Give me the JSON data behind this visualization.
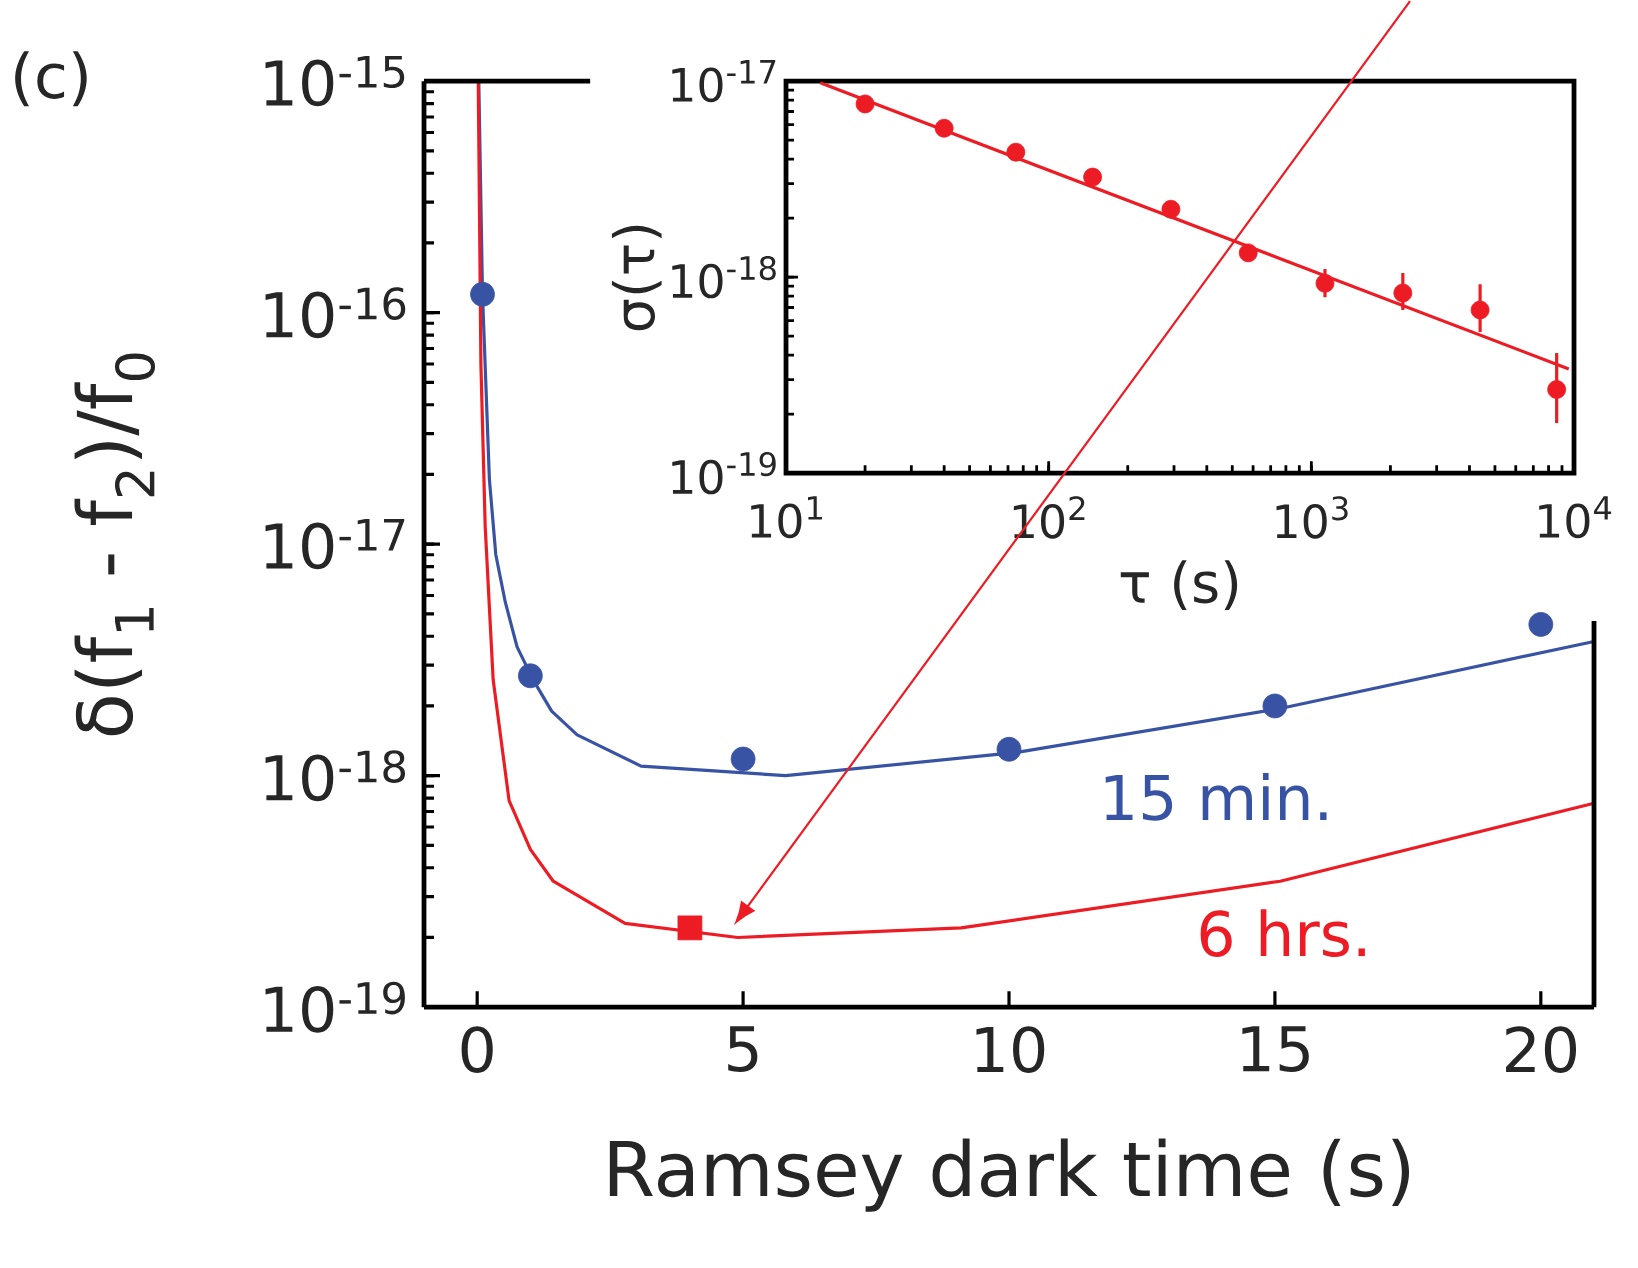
{
  "chart_data": [
    {
      "type": "line",
      "xlabel": "Ramsey dark time (s)",
      "ylabel": "δ(f$_{1}$ - f$_{2}$)/f$_{0}$",
      "annotations": [
        "(c)"
      ],
      "log": "y",
      "xlim": [
        -1,
        21
      ],
      "xticks": [
        0,
        5,
        10,
        15,
        20
      ],
      "ylim": [
        1e-19,
        1e-15
      ],
      "yticks": [
        {
          "value": 1e-19,
          "label": "10$^{-19}$"
        },
        {
          "value": 1e-18,
          "label": "10$^{-18}$"
        },
        {
          "value": 1e-17,
          "label": "10$^{-17}$"
        },
        {
          "value": 1e-16,
          "label": "10$^{-16}$"
        },
        {
          "value": 1e-15,
          "label": "10$^{-15}$"
        }
      ],
      "series": [
        {
          "name": "15 min.",
          "color": "#3953a4",
          "x": [
            0.03,
            0.1,
            0.23,
            0.35,
            0.53,
            0.75,
            1.05,
            1.4,
            1.88,
            3.08,
            5.8,
            10.15,
            15.1,
            21
          ],
          "values": [
            1e-15,
            1.2e-16,
            1.9e-17,
            9e-18,
            5.6e-18,
            3.6e-18,
            2.6e-18,
            1.9e-18,
            1.5e-18,
            1.1e-18,
            1e-18,
            1.26e-18,
            1.95e-18,
            3.8e-18
          ]
        },
        {
          "type": "scatter",
          "color": "#3953a4",
          "marker": "circle",
          "x": [
            0.1,
            1,
            5,
            10,
            15,
            20
          ],
          "values": [
            1.2e-16,
            2.7e-18,
            1.18e-18,
            1.3e-18,
            2e-18,
            4.5e-18
          ]
        },
        {
          "name": "6 hrs.",
          "color": "#ed1c24",
          "x": [
            0.02,
            0.07,
            0.15,
            0.3,
            0.6,
            1.0,
            1.43,
            2.78,
            4.9,
            9.1,
            15.1,
            21
          ],
          "values": [
            1e-15,
            6e-17,
            1.2e-17,
            2.6e-18,
            7.8e-19,
            4.8e-19,
            3.5e-19,
            2.3e-19,
            2e-19,
            2.2e-19,
            3.5e-19,
            7.6e-19
          ]
        },
        {
          "type": "scatter",
          "color": "#ed1c24",
          "marker": "square",
          "x": [
            4
          ],
          "values": [
            2.2e-19
          ]
        }
      ]
    },
    {
      "type": "scatter",
      "xlabel": "τ (s)",
      "ylabel": "σ(τ)",
      "log": "xy",
      "xlim": [
        10,
        10000
      ],
      "xticks": [
        {
          "value": 10,
          "label": "10$^{1}$"
        },
        {
          "value": 100,
          "label": "10$^{2}$"
        },
        {
          "value": 1000,
          "label": "10$^{3}$"
        },
        {
          "value": 10000,
          "label": "10$^{4}$"
        }
      ],
      "ylim": [
        1e-19,
        1e-17
      ],
      "yticks": [
        {
          "value": 1e-19,
          "label": "10$^{-19}$"
        },
        {
          "value": 1e-18,
          "label": "10$^{-18}$"
        },
        {
          "value": 1e-17,
          "label": "10$^{-17}$"
        }
      ],
      "series": [
        {
          "color": "#ed1c24",
          "marker": "circle",
          "x": [
            20,
            40,
            75,
            147,
            292,
            575,
            1127,
            2230,
            4390,
            8590
          ],
          "values": [
            7.65e-18,
            5.75e-18,
            4.34e-18,
            3.24e-18,
            2.22e-18,
            1.33e-18,
            9.3e-19,
            8.3e-19,
            6.8e-19,
            2.67e-19
          ],
          "errors": [
            null,
            null,
            null,
            null,
            null,
            null,
            [
              7.9e-19,
              1.1e-18
            ],
            [
              6.8e-19,
              1.05e-18
            ],
            [
              5.25e-19,
              9.2e-19
            ],
            [
              1.8e-19,
              4.1e-19
            ]
          ]
        },
        {
          "type": "line",
          "color": "#ed1c24",
          "x": [
            13.5,
            9550
          ],
          "values": [
            9.8e-18,
            3.4e-19
          ]
        }
      ]
    }
  ]
}
